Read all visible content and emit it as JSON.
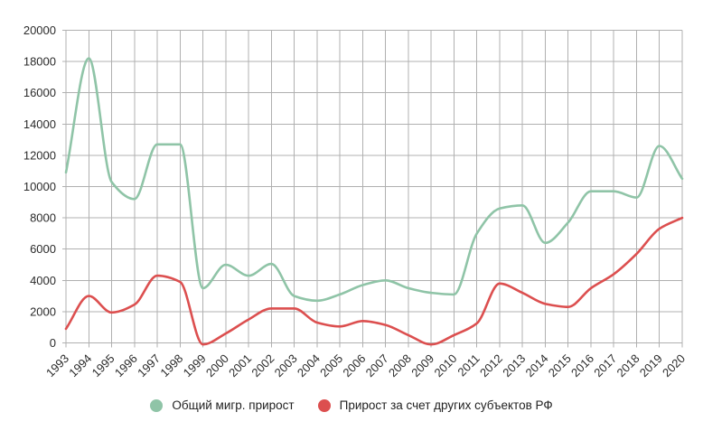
{
  "chart_data": {
    "type": "line",
    "title": "",
    "xlabel": "",
    "ylabel": "",
    "x": [
      1993,
      1994,
      1995,
      1996,
      1997,
      1998,
      1999,
      2000,
      2001,
      2002,
      2003,
      2004,
      2005,
      2006,
      2007,
      2008,
      2009,
      2010,
      2011,
      2012,
      2013,
      2014,
      2015,
      2016,
      2017,
      2018,
      2019,
      2020
    ],
    "series": [
      {
        "name": "Общий мигр. прирост",
        "color": "#8fc4a7",
        "values": [
          10900,
          18200,
          10300,
          9200,
          12700,
          12700,
          3500,
          5000,
          4300,
          5050,
          3000,
          2700,
          3100,
          3700,
          4000,
          3500,
          3200,
          3100,
          7000,
          8600,
          8800,
          6400,
          7700,
          9700,
          9700,
          9300,
          12600,
          10500
        ]
      },
      {
        "name": "Прирост за счет других субъектов РФ",
        "color": "#dc4f4f",
        "values": [
          900,
          3000,
          1950,
          2450,
          4300,
          3900,
          -100,
          600,
          1500,
          2200,
          2200,
          1300,
          1050,
          1400,
          1150,
          500,
          -100,
          500,
          1250,
          3800,
          3200,
          2500,
          2300,
          3500,
          4400,
          5700,
          7300,
          8000
        ]
      }
    ],
    "ylim": [
      0,
      20000
    ],
    "ytick_step": 2000,
    "grid": true,
    "smooth": true,
    "legend_position": "bottom"
  },
  "legend": {
    "items": [
      {
        "label": "Общий мигр. прирост",
        "color": "#8fc4a7"
      },
      {
        "label": "Прирост за счет других субъектов РФ",
        "color": "#dc4f4f"
      }
    ]
  },
  "colors": {
    "grid": "#b0b0b0",
    "axis_text": "#2b2b2b",
    "background": "#ffffff"
  }
}
